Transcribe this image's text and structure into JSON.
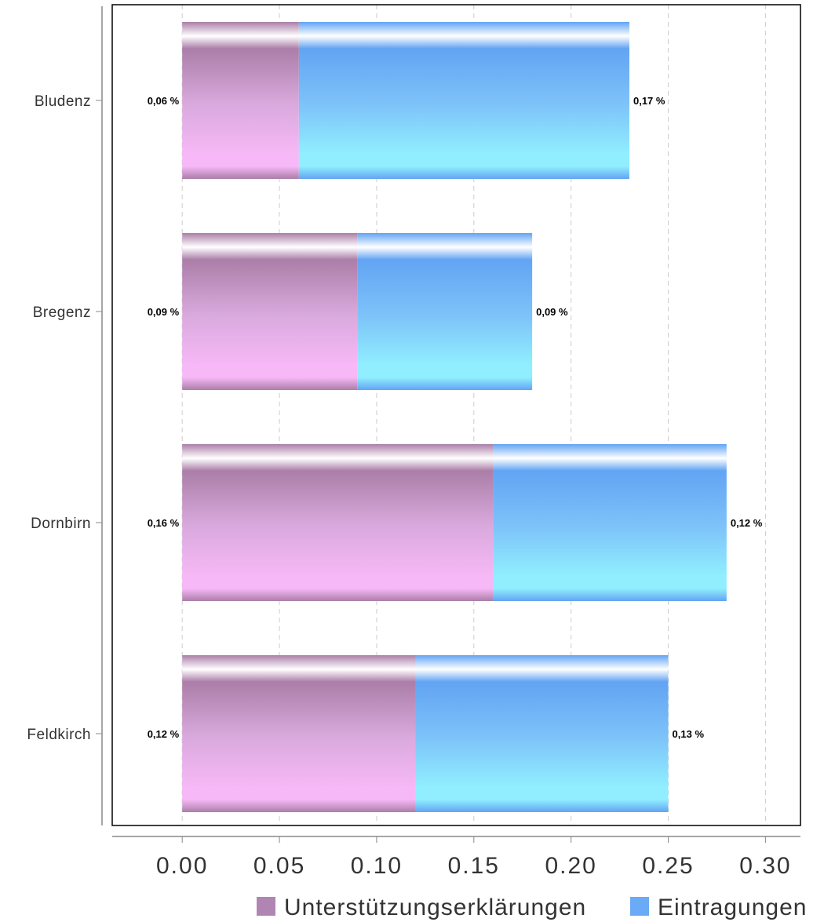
{
  "chart_data": {
    "type": "bar",
    "orientation": "horizontal",
    "stacked": true,
    "categories": [
      "Bludenz",
      "Bregenz",
      "Dornbirn",
      "Feldkirch"
    ],
    "series": [
      {
        "name": "Unterstützungserklärungen",
        "values": [
          0.06,
          0.09,
          0.16,
          0.12
        ],
        "labels": [
          "0,06 %",
          "0,09 %",
          "0,16 %",
          "0,12 %"
        ],
        "color": "#b185b3"
      },
      {
        "name": "Eintragungen",
        "values": [
          0.17,
          0.09,
          0.12,
          0.13
        ],
        "labels": [
          "0,17 %",
          "0,09 %",
          "0,12 %",
          "0,13 %"
        ],
        "color": "#6aaaf6"
      }
    ],
    "xticks": [
      "0.00",
      "0.05",
      "0.10",
      "0.15",
      "0.20",
      "0.25",
      "0.30"
    ],
    "xlim": [
      -0.036,
      0.318
    ],
    "grid": "vertical-dashed",
    "legend_position": "bottom-right"
  }
}
